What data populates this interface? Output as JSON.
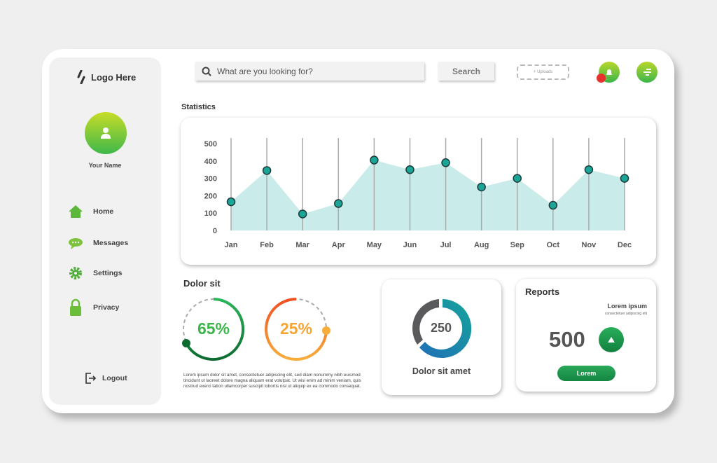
{
  "sidebar": {
    "logo": "Logo Here",
    "user_name": "Your Name",
    "items": [
      {
        "label": "Home",
        "icon": "home-icon"
      },
      {
        "label": "Messages",
        "icon": "chat-icon"
      },
      {
        "label": "Settings",
        "icon": "gear-icon"
      },
      {
        "label": "Privacy",
        "icon": "lock-icon"
      }
    ],
    "logout": "Logout"
  },
  "header": {
    "search_placeholder": "What are you looking for?",
    "search_button": "Search",
    "uploads": "+ Uploads"
  },
  "statistics": {
    "title": "Statistics"
  },
  "chart_data": {
    "type": "area",
    "categories": [
      "Jan",
      "Feb",
      "Mar",
      "Apr",
      "May",
      "Jun",
      "Jul",
      "Aug",
      "Sep",
      "Oct",
      "Nov",
      "Dec"
    ],
    "values": [
      165,
      345,
      95,
      155,
      405,
      350,
      390,
      250,
      300,
      145,
      350,
      300
    ],
    "yticks": [
      0,
      100,
      200,
      300,
      400,
      500
    ],
    "ylim": [
      0,
      500
    ],
    "fill_color": "#c9ebe9",
    "marker_color": "#1aa596"
  },
  "dolor": {
    "title": "Dolor sit",
    "gauge1": {
      "label": "65%",
      "value": 65
    },
    "gauge2": {
      "label": "25%",
      "value": 25
    },
    "text": "Lorem ipsum dolor sit amet, consectetuer adipiscing elit, sed diam nonummy nibh euismod tincidunt ut laoreet dolore magna aliquam erat volutpat. Ut wisi enim ad minim veniam, quis nostrud exerci tation ullamcorper suscipit lobortis nisl ut aliquip ex ea commodo consequat."
  },
  "donut": {
    "value": "250",
    "label": "Dolor sit amet",
    "fraction": 0.7
  },
  "reports": {
    "title": "Reports",
    "subtitle": "Lorem ipsum",
    "caption": "consectetuer adipiscing elit",
    "value": "500",
    "button": "Lorem"
  }
}
